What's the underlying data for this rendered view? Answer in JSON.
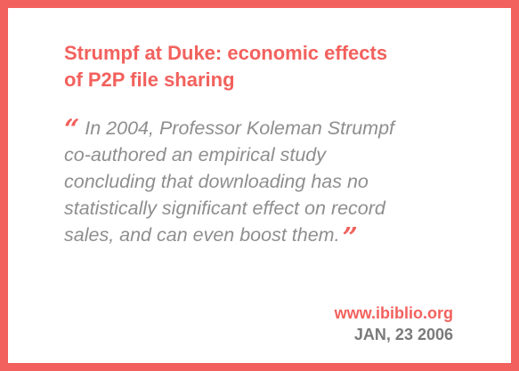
{
  "card": {
    "title_lines": [
      "Strumpf at Duke: economic effects",
      "of P2P file sharing"
    ],
    "quote": {
      "open_mark": "“",
      "close_mark": "”",
      "lines": [
        "In 2004, Professor Koleman Strumpf",
        "co-authored an empirical study",
        "concluding that downloading has no",
        "statistically significant effect on record",
        "sales, and can even boost them."
      ]
    },
    "source": {
      "site": "www.ibiblio.org",
      "date": "JAN, 23 2006"
    }
  },
  "colors": {
    "accent": "#F2615D",
    "quote_text": "#8E8E8E",
    "date_text": "#7A7A7A",
    "background": "#FFFFFF"
  }
}
